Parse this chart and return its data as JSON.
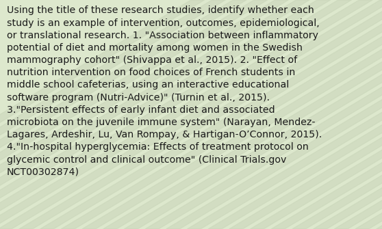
{
  "text": "Using the title of these research studies, identify whether each\nstudy is an example of intervention, outcomes, epidemiological,\nor translational research. 1. \"Association between inflammatory\npotential of diet and mortality among women in the Swedish\nmammography cohort\" (Shivappa et al., 2015). 2. \"Effect of\nnutrition intervention on food choices of French students in\nmiddle school cafeterias, using an interactive educational\nsoftware program (Nutri-Advice)\" (Turnin et al., 2015).\n3.\"Persistent effects of early infant diet and associated\nmicrobiota on the juvenile immune system\" (Narayan, Mendez-\nLagares, Ardeshir, Lu, Van Rompay, & Hartigan-O’Connor, 2015).\n4.\"In-hospital hyperglycemia: Effects of treatment protocol on\nglycemic control and clinical outcome\" (Clinical Trials.gov\nNCT00302874)",
  "background_color_base": "#cdd8be",
  "background_color_light": "#dde8cd",
  "text_color": "#1a1a1a",
  "font_size": 10.2,
  "fig_width": 5.58,
  "fig_height": 3.35,
  "stripe_color1": "#c8d4b8",
  "stripe_color2": "#dce8cc",
  "stripe_alpha": 0.5
}
